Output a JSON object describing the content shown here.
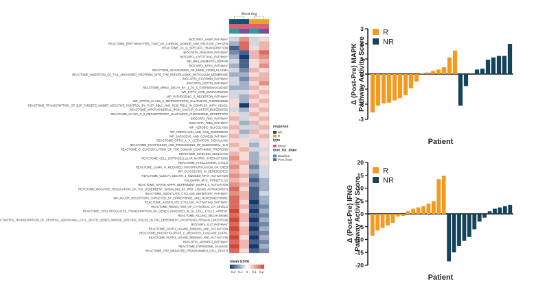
{
  "chart_data": [
    {
      "type": "heatmap",
      "title": "Blood Avg",
      "annotation_bars": [
        "response",
        "type",
        "time_for_draw"
      ],
      "columns": 4,
      "rows": [
        {
          "label": "BIOCARTA_AHSP_PATHWAY",
          "values": [
            -0.05,
            0.15,
            -0.05,
            0.05
          ]
        },
        {
          "label": "REACTOME_ERYTHROCYTES_TAKE_UP_CARBON_DIOXIDE_AND_RELEASE_OXYGEN",
          "values": [
            -0.1,
            0.2,
            -0.05,
            0.1
          ]
        },
        {
          "label": "REACTOME_O1_IL_SPECIFIC_TRANSCRIPTION",
          "values": [
            -0.2,
            0.2,
            0.05,
            0.1
          ]
        },
        {
          "label": "BIOCARTA_THELPER_PATHWAY",
          "values": [
            -0.15,
            -0.2,
            0.1,
            0.2
          ]
        },
        {
          "label": "BIOCARTA_CYTOTOXIC_PATHWAY",
          "values": [
            -0.1,
            -0.25,
            0.1,
            0.15
          ]
        },
        {
          "label": "WP_DNA_MISMATCH_REPAIR",
          "values": [
            -0.05,
            -0.2,
            0.05,
            0.1
          ]
        },
        {
          "label": "BIOCARTA_NOS1_PATHWAY",
          "values": [
            -0.1,
            -0.2,
            0.05,
            0.15
          ]
        },
        {
          "label": "REACTOME_SCAVENGING_OF_HEME_FROM_PLASMA",
          "values": [
            -0.05,
            -0.15,
            0.1,
            0.05
          ]
        },
        {
          "label": "REACTOME_INSERTION_OF_TAIL_ANCHORED_PROTEINS_INTO_THE_ENDOPLASMIC_RETICULUM_MEMBRANE",
          "values": [
            -0.1,
            -0.1,
            0.05,
            0.1
          ]
        },
        {
          "label": "BIOCARTA_STATHMIN_PATHWAY",
          "values": [
            -0.05,
            -0.15,
            0.1,
            0.1
          ]
        },
        {
          "label": "BIOCARTA_LEPTIN_PATHWAY",
          "values": [
            -0.05,
            -0.1,
            0.05,
            0.15
          ]
        },
        {
          "label": "REACTOME_MRNA_DECAY_BY_3_TO_5_EXORIBONUCLEASE",
          "values": [
            -0.1,
            -0.1,
            0.1,
            0.05
          ]
        },
        {
          "label": "WP_FATTY_ACID_BIOSYNTHESIS",
          "values": [
            -0.05,
            -0.05,
            0.05,
            0.1
          ]
        },
        {
          "label": "WP_PATHOGENIC_E_RECEPTOR_PATHWAY",
          "values": [
            -0.05,
            -0.1,
            0.1,
            0.05
          ]
        },
        {
          "label": "WP_GPCRS_CLASS_C_METABOTROPIC_GLUTAMATE_PHEROMONE",
          "values": [
            0.05,
            -0.1,
            0.05,
            0.1
          ]
        },
        {
          "label": "REACTOME_TRANSCRIPTION_OF_E2F_TARGETS_UNDER_NEGATIVE_CONTROL_BY_P107_RBL1_AND_P130_RBL2_IN_COMPLEX_WITH_HDAC1",
          "values": [
            0.05,
            -0.25,
            0.1,
            0.05
          ]
        },
        {
          "label": "REACTOME_MITOCHONDRIAL_IRON_SULFUR_CLUSTER_BIOGENESIS",
          "values": [
            -0.05,
            -0.1,
            0.05,
            0.1
          ]
        },
        {
          "label": "REACTOME_CLASS_C_3_METABOTROPIC_GLUTAMATE_PHEROMONE_RECEPTORS",
          "values": [
            0.05,
            -0.05,
            0.1,
            0.05
          ]
        },
        {
          "label": "BIOCARTA_RNA_PATHWAY",
          "values": [
            0.1,
            -0.05,
            0.05,
            0.1
          ]
        },
        {
          "label": "BIOCARTA_TOB1_PATHWAY",
          "values": [
            0.05,
            -0.1,
            0.1,
            0.05
          ]
        },
        {
          "label": "WP_AEROBIC_GLYCOLYSIS",
          "values": [
            0.1,
            -0.05,
            -0.05,
            0.1
          ]
        },
        {
          "label": "WP_RIBOFLAVIN_AND_COQ_DISORDERS",
          "values": [
            0.05,
            -0.1,
            0.1,
            0.05
          ]
        },
        {
          "label": "WP_SARSCOV2_AND_COVID19_PATHWAY",
          "values": [
            0.1,
            -0.05,
            0.05,
            0.1
          ]
        },
        {
          "label": "REACTOME_OPTIS_IL_K_ACTIVATION_SIGNALLING",
          "values": [
            0.05,
            0.05,
            -0.05,
            0.05
          ]
        },
        {
          "label": "REACTOME_TRAFFICKING_AND_PROCESSING_OF_ENDOSOMAL_TLR",
          "values": [
            0.1,
            0.05,
            -0.1,
            0.05
          ]
        },
        {
          "label": "REACTOME_O_GLYCOSYLATION_OF_TSR_DOMAIN_CONTAINING_PROTEINS",
          "values": [
            0.05,
            0.1,
            -0.05,
            -0.05
          ]
        },
        {
          "label": "REACTOME_INTEGRIN_SIGNALING",
          "values": [
            0.1,
            0.05,
            -0.1,
            0.05
          ]
        },
        {
          "label": "REACTOME_CELL_EXTRACELLULAR_MATRIX_INTERACTIONS",
          "values": [
            0.15,
            0.05,
            -0.1,
            -0.05
          ]
        },
        {
          "label": "REACTOME_PHOLLSTRIMA_CYCLE",
          "values": [
            0.1,
            0.1,
            -0.1,
            0.05
          ]
        },
        {
          "label": "REACTOME_CAMK_IV_MEDIATED_PHOSPHORYLATION_OF_CREB",
          "values": [
            0.15,
            0.05,
            -0.15,
            -0.05
          ]
        },
        {
          "label": "WP_GLYCOLYSIS_IN_SENESCENCE",
          "values": [
            0.1,
            0.05,
            -0.1,
            -0.05
          ]
        },
        {
          "label": "REACTOME_CLEC7A_DECTIN_1_INDUCES_NFAT_ACTIVATION",
          "values": [
            0.15,
            0.1,
            -0.15,
            -0.05
          ]
        },
        {
          "label": "HALLMARK_MYC_TARGETS_V2",
          "values": [
            0.1,
            0.05,
            -0.2,
            -0.1
          ]
        },
        {
          "label": "REACTOME_MAP2K_MAPK_DEPENDENT_MAPK1_3_ACTIVATION",
          "values": [
            0.15,
            0.1,
            -0.15,
            -0.1
          ]
        },
        {
          "label": "REACTOME_NEGATIVE_REGULATION_OF_TCF_DEPENDENT_SIGNALING_BY_WNT_LIGAND_ANTAGONISTS",
          "values": [
            0.2,
            0.05,
            -0.2,
            -0.1
          ]
        },
        {
          "label": "REACTOME_ADENYLATE_CYCLASE_INHIBITORY_PATHWAY",
          "values": [
            0.15,
            0.1,
            -0.2,
            -0.05
          ]
        },
        {
          "label": "WP_MAJOR_RECEPTORS_TARGETED_BY_EPINEPHRINE_AND_NOREPINEPHRINE",
          "values": [
            0.2,
            0.1,
            -0.2,
            -0.1
          ]
        },
        {
          "label": "REACTOME_ADENYLATE_CYCLASE_ACTIVATING_PATHWAY",
          "values": [
            0.2,
            0.05,
            -0.25,
            -0.1
          ]
        },
        {
          "label": "REACTOME_REDUCTION_OF_CYTOSOLIC_CA_LEVELS",
          "values": [
            0.2,
            0.1,
            -0.2,
            -0.15
          ]
        },
        {
          "label": "REACTOME_TP53_REGULATES_TRANSCRIPTION_OF_GENES_INVOLVED_IN_G1_CELL_CYCLE_ARREST",
          "values": [
            0.25,
            0.05,
            -0.25,
            -0.1
          ]
        },
        {
          "label": "REACTOME_KILLING_MECHANISMS",
          "values": [
            0.2,
            0.1,
            -0.2,
            -0.15
          ]
        },
        {
          "label": "REACTOME_ACTIVATES_TRANSCRIPTION_OF_SEVERAL_ADDITIONAL_CELL_DEATH_GENES_WHOSE_SPECIFIC_ROLES_IN_P53_DEPENDENT_APOPTOSIS_REMAIN_UNCERTAIN",
          "values": [
            0.25,
            0.1,
            -0.25,
            -0.1
          ]
        },
        {
          "label": "BIOCARTA_IL17_PATHWAY",
          "values": [
            0.2,
            0.05,
            -0.2,
            -0.15
          ]
        },
        {
          "label": "REACTOME_FGFR1_LIGAND_BINDING_AND_ACTIVATION",
          "values": [
            0.25,
            0.1,
            -0.25,
            -0.1
          ]
        },
        {
          "label": "REACTOME_PHOSPHOLIPASE_C_MEDIATED_CASCADE_FGFR1",
          "values": [
            0.2,
            0.1,
            -0.2,
            -0.15
          ]
        },
        {
          "label": "REACTOME_FGFR3_LIGAND_BINDING_AND_ACTIVATION",
          "values": [
            0.25,
            0.05,
            -0.25,
            -0.1
          ]
        },
        {
          "label": "BIOCARTA_ARENRF2_PATHWAY",
          "values": [
            0.2,
            0.1,
            -0.2,
            -0.15
          ]
        },
        {
          "label": "REACTOME_PYRIMIDINE_SALVAGE",
          "values": [
            0.25,
            0.1,
            -0.25,
            -0.1
          ]
        },
        {
          "label": "REACTOME_TRP_MEDIATED_PROGRAMMED_CELL_DEATH",
          "values": [
            0.2,
            0.05,
            -0.2,
            -0.15
          ]
        }
      ],
      "legend": {
        "response_title": "response",
        "response_items": [
          {
            "label": "NR",
            "color": "#1a4f6e"
          },
          {
            "label": "R",
            "color": "#f0a030"
          }
        ],
        "type_title": "type",
        "type_items": [
          {
            "label": "Blood",
            "color": "#d9607a"
          }
        ],
        "time_title": "time_for_draw",
        "time_items": [
          {
            "label": "Baseline",
            "color": "#23a09a"
          },
          {
            "label": "Post.Draw",
            "color": "#7a4f9a"
          }
        ],
        "colorbar_title": "mean GSVA",
        "colorbar_ticks": [
          "-0.2",
          "-0.1",
          "0",
          "0.1",
          "0.2"
        ],
        "colorbar_range": [
          -0.25,
          0.25
        ]
      },
      "column_annotations": {
        "response": [
          "NR",
          "NR",
          "R",
          "R"
        ],
        "type": [
          "Blood",
          "Blood",
          "Blood",
          "Blood"
        ],
        "time_for_draw": [
          "Baseline",
          "Post.Draw",
          "Baseline",
          "Post.Draw"
        ]
      }
    },
    {
      "type": "bar",
      "ylabel_line1": "Δ (Post-Pre) MAPK",
      "ylabel_line2": "Pathway Activity Score",
      "xlabel": "Patient",
      "ylim": [
        -3,
        3
      ],
      "yticks": [
        "3",
        "2",
        "1",
        "0",
        "-1",
        "-2",
        "-3"
      ],
      "legend": [
        {
          "label": "R",
          "color": "#f59a1f"
        },
        {
          "label": "NR",
          "color": "#14435a"
        }
      ],
      "bars": [
        {
          "group": "R",
          "value": -2.55
        },
        {
          "group": "R",
          "value": -2.1
        },
        {
          "group": "R",
          "value": -1.95
        },
        {
          "group": "R",
          "value": -1.9
        },
        {
          "group": "R",
          "value": -1.75
        },
        {
          "group": "R",
          "value": -1.6
        },
        {
          "group": "R",
          "value": -1.4
        },
        {
          "group": "R",
          "value": -0.95
        },
        {
          "group": "R",
          "value": -0.5
        },
        {
          "group": "R",
          "value": 0.05
        },
        {
          "group": "R",
          "value": 0.1
        },
        {
          "group": "R",
          "value": 0.2
        },
        {
          "group": "R",
          "value": 0.3
        },
        {
          "group": "R",
          "value": 0.45
        },
        {
          "group": "R",
          "value": 1.1
        },
        {
          "group": "R",
          "value": 1.55
        },
        {
          "group": "NR",
          "value": -2.1
        },
        {
          "group": "NR",
          "value": -0.8
        },
        {
          "group": "NR",
          "value": -0.05
        },
        {
          "group": "NR",
          "value": 0.3
        },
        {
          "group": "NR",
          "value": 0.35
        },
        {
          "group": "NR",
          "value": 0.95
        },
        {
          "group": "NR",
          "value": 1.1
        },
        {
          "group": "NR",
          "value": 1.2
        },
        {
          "group": "NR",
          "value": 1.2
        },
        {
          "group": "NR",
          "value": 2.0
        }
      ]
    },
    {
      "type": "bar",
      "ylabel_line1": "Δ (Post-Pre) IFNG",
      "ylabel_line2": "Pathway Activity Score",
      "xlabel": "Patient",
      "ylim": [
        -20,
        20
      ],
      "yticks": [
        "20",
        "15",
        "10",
        "5",
        "0",
        "-5",
        "-10",
        "-15",
        "-20"
      ],
      "legend": [
        {
          "label": "R",
          "color": "#f59a1f"
        },
        {
          "label": "NR",
          "color": "#14435a"
        }
      ],
      "bars": [
        {
          "group": "R",
          "value": -8.5
        },
        {
          "group": "R",
          "value": -6.5
        },
        {
          "group": "R",
          "value": -5.5
        },
        {
          "group": "R",
          "value": -4.5
        },
        {
          "group": "R",
          "value": -3.5
        },
        {
          "group": "R",
          "value": -1.0
        },
        {
          "group": "R",
          "value": -0.8
        },
        {
          "group": "R",
          "value": 1.0
        },
        {
          "group": "R",
          "value": 2.0
        },
        {
          "group": "R",
          "value": 2.5
        },
        {
          "group": "R",
          "value": 3.0
        },
        {
          "group": "R",
          "value": 4.0
        },
        {
          "group": "R",
          "value": 5.0
        },
        {
          "group": "R",
          "value": 13.5
        },
        {
          "group": "R",
          "value": 14.8
        },
        {
          "group": "NR",
          "value": -18.5
        },
        {
          "group": "NR",
          "value": -15.0
        },
        {
          "group": "NR",
          "value": -12.5
        },
        {
          "group": "NR",
          "value": -10.5
        },
        {
          "group": "NR",
          "value": -9.0
        },
        {
          "group": "NR",
          "value": -6.0
        },
        {
          "group": "NR",
          "value": -3.0
        },
        {
          "group": "NR",
          "value": -1.5
        },
        {
          "group": "NR",
          "value": 1.0
        },
        {
          "group": "NR",
          "value": 2.0
        },
        {
          "group": "NR",
          "value": 2.5
        },
        {
          "group": "NR",
          "value": 3.0
        },
        {
          "group": "NR",
          "value": 3.5
        }
      ]
    }
  ]
}
